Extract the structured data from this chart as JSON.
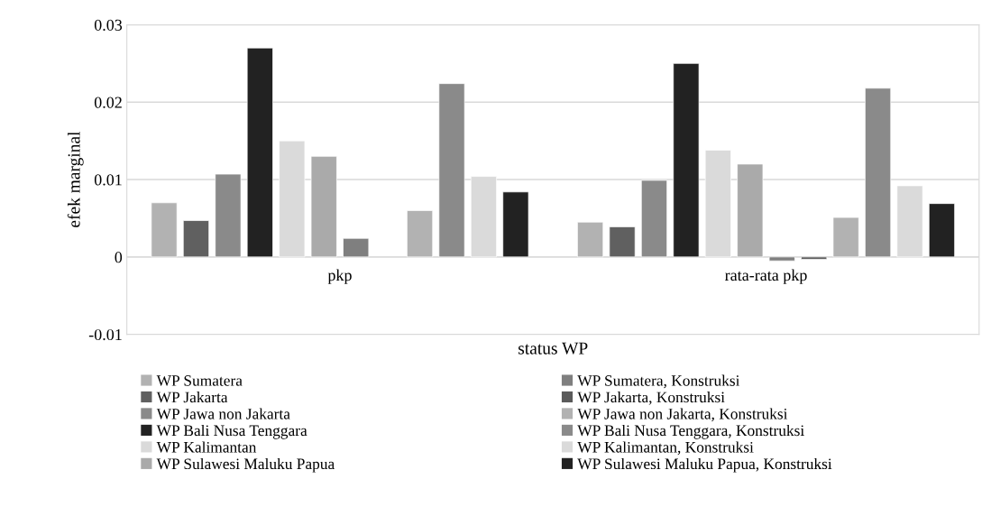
{
  "chart_data": {
    "type": "bar",
    "xlabel": "status WP",
    "ylabel": "efek marginal",
    "categories": [
      "pkp",
      "rata-rata pkp"
    ],
    "series": [
      {
        "name": "WP Sumatera",
        "color": "#b2b2b2",
        "values": [
          0.007,
          0.0045
        ]
      },
      {
        "name": "WP Jakarta",
        "color": "#606060",
        "values": [
          0.0047,
          0.0039
        ]
      },
      {
        "name": "WP Jawa non Jakarta",
        "color": "#8a8a8a",
        "values": [
          0.0107,
          0.0099
        ]
      },
      {
        "name": "WP Bali Nusa Tenggara",
        "color": "#222222",
        "values": [
          0.027,
          0.025
        ]
      },
      {
        "name": "WP Kalimantan",
        "color": "#dadada",
        "values": [
          0.015,
          0.0138
        ]
      },
      {
        "name": "WP Sulawesi Maluku Papua",
        "color": "#aaaaaa",
        "values": [
          0.013,
          0.012
        ]
      },
      {
        "name": "WP Sumatera, Konstruksi",
        "color": "#7f7f7f",
        "values": [
          0.0024,
          -0.0005
        ]
      },
      {
        "name": "WP Jakarta, Konstruksi",
        "color": "#5a5a5a",
        "values": [
          null,
          -0.0003
        ]
      },
      {
        "name": "WP Jawa non Jakarta, Konstruksi",
        "color": "#b2b2b2",
        "values": [
          0.006,
          0.0051
        ]
      },
      {
        "name": "WP Bali Nusa Tenggara, Konstruksi",
        "color": "#8a8a8a",
        "values": [
          0.0224,
          0.0218
        ]
      },
      {
        "name": "WP Kalimantan, Konstruksi",
        "color": "#dadada",
        "values": [
          0.0104,
          0.0092
        ]
      },
      {
        "name": "WP Sulawesi Maluku Papua, Konstruksi",
        "color": "#222222",
        "values": [
          0.0084,
          0.0069
        ]
      }
    ],
    "ylim": [
      -0.01,
      0.03
    ],
    "yticks": [
      -0.01,
      0,
      0.01,
      0.02,
      0.03
    ],
    "grid": "y",
    "legend": "bottom"
  }
}
